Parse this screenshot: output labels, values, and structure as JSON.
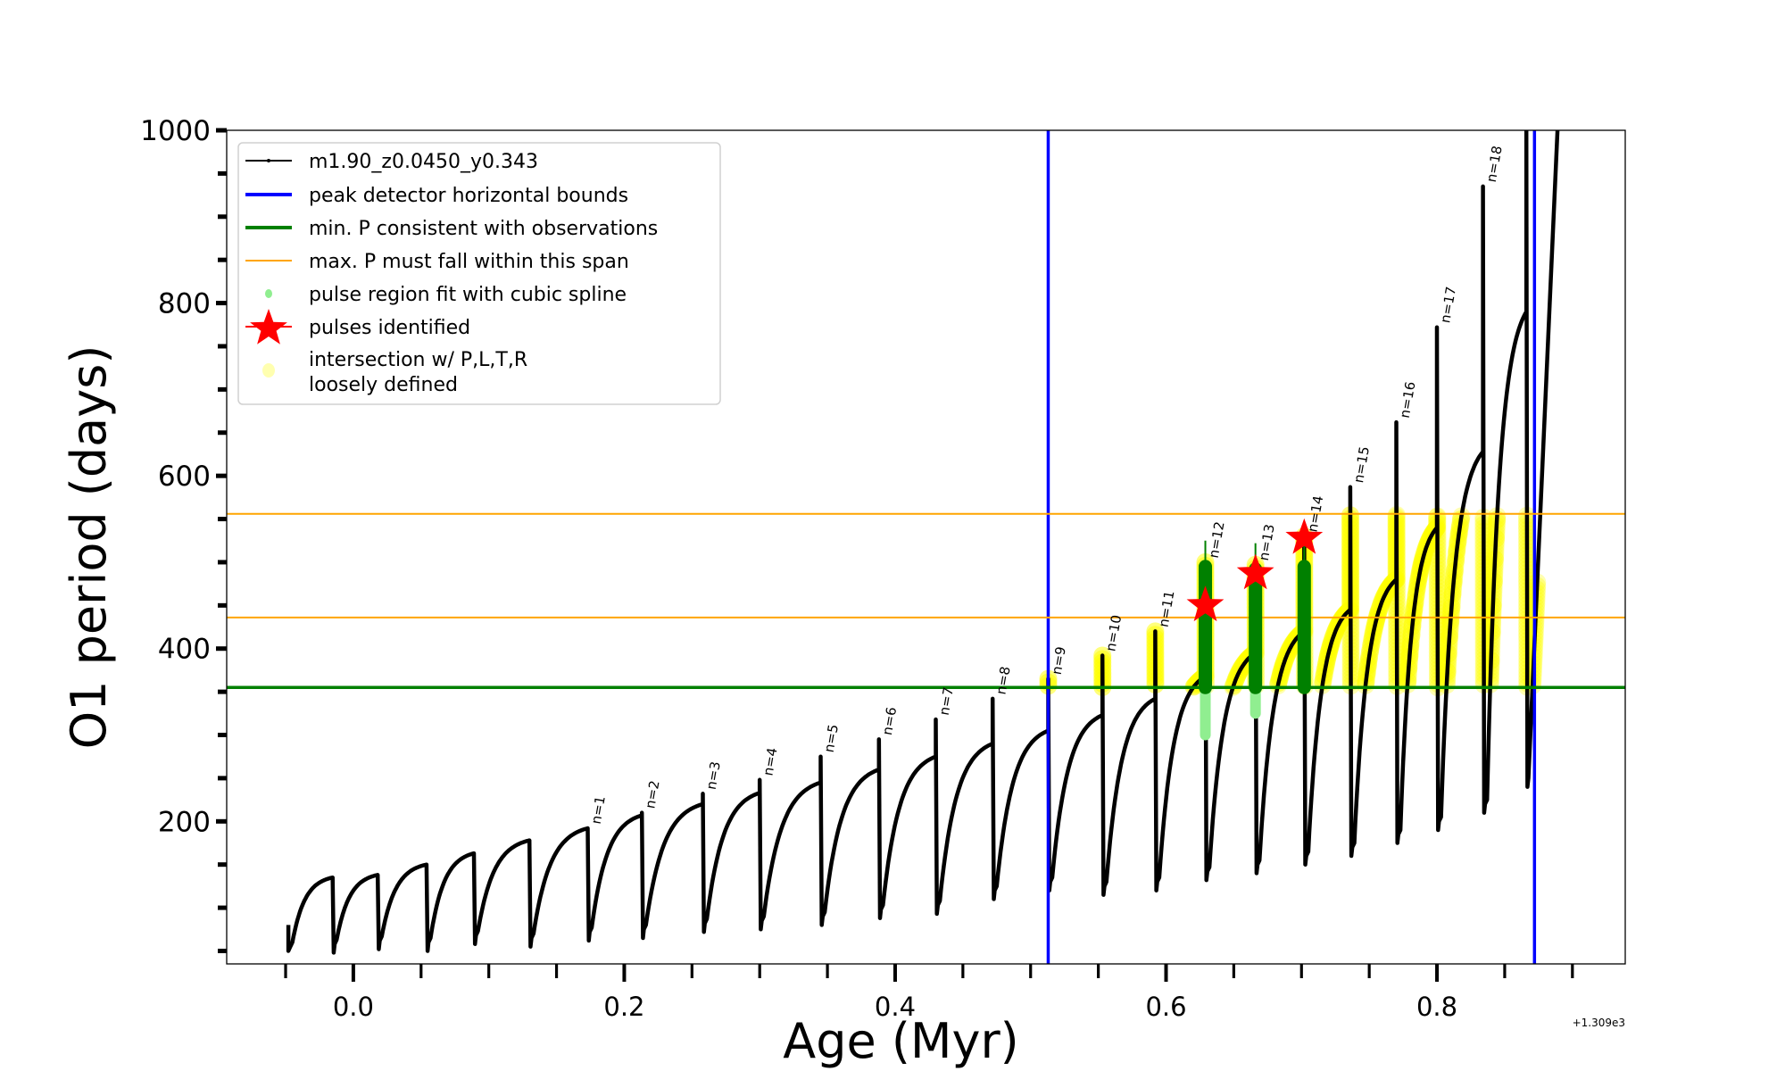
{
  "chart_data": {
    "type": "line",
    "title": "",
    "xlabel": "Age (Myr)",
    "ylabel": "O1 period (days)",
    "x_offset_label": "+1.309e3",
    "xlim": [
      -0.0935,
      0.939
    ],
    "ylim": [
      35,
      1000
    ],
    "xticks": [
      0.0,
      0.2,
      0.4,
      0.6,
      0.8
    ],
    "xtick_labels": [
      "0.0",
      "0.2",
      "0.4",
      "0.6",
      "0.8"
    ],
    "yticks": [
      200,
      400,
      600,
      800,
      1000
    ],
    "ytick_labels": [
      "200",
      "400",
      "600",
      "800",
      "1000"
    ],
    "grid": false,
    "legend_position": "upper-left",
    "legend": [
      {
        "label": "m1.90_z0.0450_y0.343",
        "kind": "line-dot",
        "color": "#000000"
      },
      {
        "label": "peak detector horizontal bounds",
        "kind": "line",
        "color": "#0000ff"
      },
      {
        "label": "min. P consistent with observations",
        "kind": "line",
        "color": "#008000"
      },
      {
        "label": "max. P must fall within this span",
        "kind": "thin-line",
        "color": "#ffa500"
      },
      {
        "label": "pulse region fit with cubic spline",
        "kind": "dot",
        "color": "#90ee90"
      },
      {
        "label": "pulses identified",
        "kind": "star",
        "color": "#ff0000"
      },
      {
        "label": "intersection w/ P,L,T,R\nloosely defined",
        "line1": "intersection w/ P,L,T,R",
        "line2": "loosely defined",
        "kind": "circle",
        "color": "#ffffb0"
      }
    ],
    "series": {
      "name": "m1.90_z0.0450_y0.343",
      "start": {
        "age": -0.048,
        "period": 50
      },
      "pulses_columns": [
        "age",
        "peak_period",
        "spike_period",
        "min_period",
        "label"
      ],
      "pulses": [
        [
          -0.0153,
          135,
          135,
          48,
          ""
        ],
        [
          0.018,
          138,
          138,
          52,
          ""
        ],
        [
          0.054,
          150,
          150,
          50,
          ""
        ],
        [
          0.089,
          163,
          163,
          58,
          ""
        ],
        [
          0.13,
          178,
          178,
          55,
          ""
        ],
        [
          0.173,
          192,
          192,
          62,
          "n=1"
        ],
        [
          0.213,
          207,
          210,
          65,
          "n=2"
        ],
        [
          0.258,
          220,
          232,
          72,
          "n=3"
        ],
        [
          0.3,
          233,
          248,
          75,
          "n=4"
        ],
        [
          0.345,
          245,
          275,
          80,
          "n=5"
        ],
        [
          0.388,
          260,
          295,
          88,
          "n=6"
        ],
        [
          0.43,
          275,
          318,
          93,
          "n=7"
        ],
        [
          0.472,
          290,
          342,
          110,
          "n=8"
        ],
        [
          0.513,
          305,
          365,
          120,
          "n=9"
        ],
        [
          0.553,
          323,
          392,
          115,
          "n=10"
        ],
        [
          0.592,
          342,
          420,
          120,
          "n=11"
        ],
        [
          0.629,
          368,
          500,
          132,
          "n=12"
        ],
        [
          0.666,
          395,
          497,
          140,
          "n=13"
        ],
        [
          0.702,
          420,
          530,
          150,
          "n=14"
        ],
        [
          0.736,
          445,
          587,
          160,
          "n=15"
        ],
        [
          0.77,
          480,
          662,
          175,
          "n=16"
        ],
        [
          0.8,
          540,
          772,
          190,
          "n=17"
        ],
        [
          0.834,
          628,
          935,
          210,
          "n=18"
        ],
        [
          0.866,
          790,
          1000,
          240,
          ""
        ]
      ],
      "end": {
        "age": 0.889,
        "period": 1000
      }
    },
    "peak_detector_bounds": [
      0.513,
      0.872
    ],
    "min_period_line": 355,
    "max_period_span": [
      436,
      556
    ],
    "spline_fits": [
      {
        "age": 0.629,
        "fit_low": 300,
        "fit_high": 525,
        "green_low": 355,
        "green_high": 495
      },
      {
        "age": 0.666,
        "fit_low": 325,
        "fit_high": 522,
        "green_low": 355,
        "green_high": 492
      },
      {
        "age": 0.702,
        "fit_low": 355,
        "fit_high": 495,
        "green_low": 355,
        "green_high": 495
      }
    ],
    "pulses_identified": [
      {
        "age": 0.629,
        "period": 450
      },
      {
        "age": 0.666,
        "period": 487
      },
      {
        "age": 0.702,
        "period": 528
      }
    ],
    "colors": {
      "curve": "#000000",
      "bounds": "#0000ff",
      "min_p": "#008000",
      "max_p": "#ffa500",
      "spline": "#90ee90",
      "spline_dark": "#008000",
      "star": "#ff0000",
      "intersection": "#ffff00"
    }
  }
}
